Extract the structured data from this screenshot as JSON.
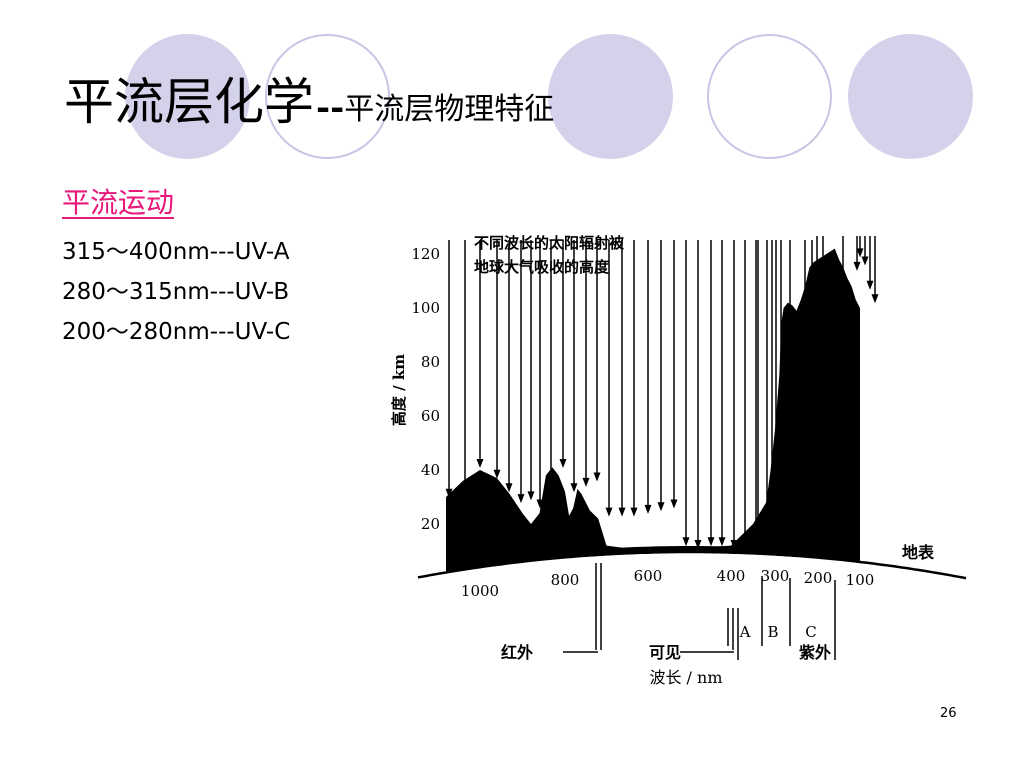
{
  "slide": {
    "title_main": "平流层化学",
    "title_separator": "--",
    "title_sub": "平流层物理特征",
    "subtitle": "平流运动",
    "uv_ranges": [
      "315～400nm---UV-A",
      "280～315nm---UV-B",
      "200～280nm---UV-C"
    ],
    "page_number": "26",
    "colors": {
      "circle_fill": "#d3d2ea",
      "circle_outline": "#c8c6e4",
      "subtitle": "#e8197b"
    }
  },
  "chart_data": {
    "type": "area",
    "annotation": [
      "不同波长的太阳辐射被",
      "地球大气吸收的高度"
    ],
    "ylabel": "高度 / km",
    "xlabel": "波长 / nm",
    "ylim": [
      0,
      120
    ],
    "y_ticks": [
      "120",
      "100",
      "80",
      "60",
      "40",
      "20"
    ],
    "x_ticks": [
      "1000",
      "800",
      "600",
      "400",
      "300",
      "200",
      "100"
    ],
    "x_axis": "reversed wavelength (long → short)",
    "ground_label": "地表",
    "region_labels": {
      "infrared": "红外",
      "visible": "可见",
      "uv": "紫外"
    },
    "uv_bands": [
      "A",
      "B",
      "C"
    ],
    "absorption_profile": {
      "x": [
        1100,
        1050,
        1000,
        960,
        930,
        900,
        880,
        860,
        845,
        830,
        815,
        800,
        790,
        780,
        770,
        760,
        740,
        720,
        700,
        600,
        500,
        400,
        350,
        320,
        310,
        300,
        290,
        285,
        280,
        270,
        260,
        250,
        240,
        230,
        220,
        210,
        200,
        190,
        180,
        170,
        160,
        150,
        140,
        130,
        120,
        110,
        100
      ],
      "y": [
        30,
        36,
        40,
        37,
        31,
        24,
        20,
        24,
        38,
        41,
        38,
        32,
        23,
        26,
        33,
        31,
        25,
        22,
        12,
        10,
        11,
        12,
        20,
        28,
        40,
        55,
        75,
        95,
        100,
        102,
        101,
        99,
        103,
        108,
        115,
        117,
        118,
        119,
        120,
        121,
        122,
        118,
        115,
        111,
        108,
        103,
        100
      ]
    },
    "arrow_tip_heights_km": [
      29,
      30,
      40,
      36,
      31,
      27,
      28,
      25,
      34,
      40,
      31,
      33,
      35,
      22,
      22,
      22,
      23,
      24,
      25,
      11,
      10,
      11,
      11,
      10,
      11,
      11,
      11,
      11,
      12,
      13,
      13,
      14,
      26,
      38,
      100,
      101,
      108,
      113,
      118,
      115,
      106,
      101
    ]
  }
}
